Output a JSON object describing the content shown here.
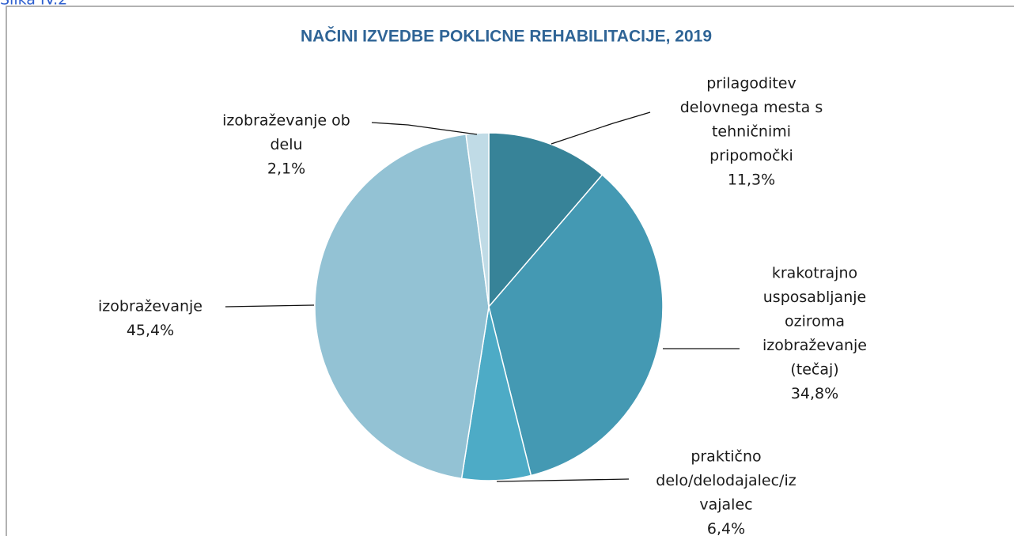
{
  "chart_data": {
    "type": "pie",
    "caption": "Slika IV.2",
    "title": "NAČINI IZVEDBE POKLICNE REHABILITACIJE, 2019",
    "categories": [
      [
        "prilagoditev",
        "delovnega mesta s",
        "tehničnimi",
        "pripomočki"
      ],
      [
        "krakotrajno",
        "usposabljanje",
        "oziroma",
        "izobraževanje",
        "(tečaj)"
      ],
      [
        "praktično",
        "delo/delodajalec/iz",
        "vajalec"
      ],
      [
        "izobraževanje"
      ],
      [
        "izobraževanje ob",
        "delu"
      ]
    ],
    "values": [
      11.3,
      34.8,
      6.4,
      45.4,
      2.1
    ],
    "value_labels": [
      "11,3%",
      "34,8%",
      "6,4%",
      "45,4%",
      "2,1%"
    ],
    "colors": [
      "#378398",
      "#4499b3",
      "#4dabc6",
      "#93c2d4",
      "#c0dbe6"
    ]
  }
}
